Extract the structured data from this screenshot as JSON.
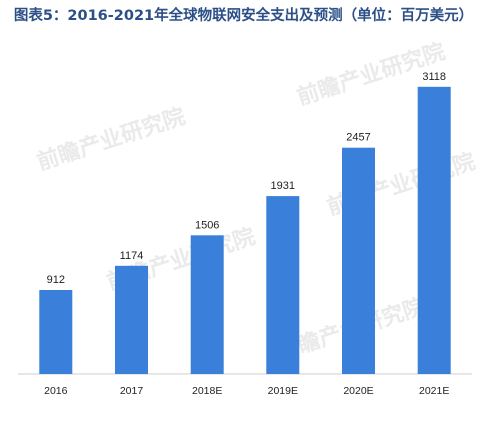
{
  "chart_data": {
    "type": "bar",
    "title": "图表5：2016-2021年全球物联网安全支出及预测（单位：百万美元）",
    "categories": [
      "2016",
      "2017",
      "2018E",
      "2019E",
      "2020E",
      "2021E"
    ],
    "values": [
      912,
      1174,
      1506,
      1931,
      2457,
      3118
    ],
    "xlabel": "",
    "ylabel": "",
    "ylim": [
      0,
      3300
    ],
    "grid": false,
    "legend": "none",
    "bar_color": "#3a7fd9"
  },
  "watermark": {
    "text": "前瞻产业研究院",
    "color": "#d9d9d9"
  }
}
